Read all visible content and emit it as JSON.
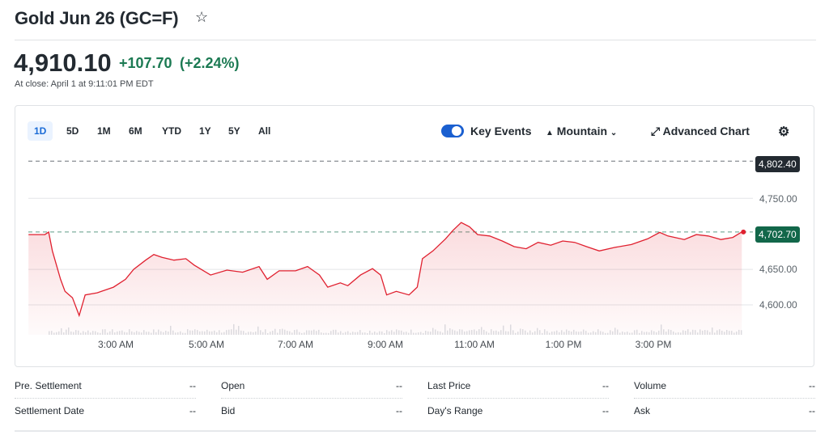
{
  "header": {
    "title": "Gold Jun 26 (GC=F)",
    "watchlist_icon": "star-icon"
  },
  "quote": {
    "price": "4,910.10",
    "change": "+107.70",
    "change_percent": "(+2.24%)",
    "close_note": "At close: April 1 at 9:11:01 PM EDT",
    "up_color": "#1c7a53"
  },
  "toolbar": {
    "ranges": [
      "1D",
      "5D",
      "1M",
      "6M",
      "YTD",
      "1Y",
      "5Y",
      "All"
    ],
    "active_range": "1D",
    "key_events_label": "Key Events",
    "key_events_on": true,
    "chart_type_label": "Mountain",
    "advanced_chart_label": "Advanced Chart",
    "settings_icon": "gear-icon"
  },
  "chart_data": {
    "type": "area",
    "line_color": "#e0202f",
    "x_ticks": [
      "3:00 AM",
      "5:00 AM",
      "7:00 AM",
      "9:00 AM",
      "11:00 AM",
      "1:00 PM",
      "3:00 PM"
    ],
    "y_ticks": [
      "4,750.00",
      "4,650.00",
      "4,600.00"
    ],
    "reference_lines": [
      {
        "label": "4,802.40",
        "value": 4802.4,
        "color": "#232a31"
      },
      {
        "label": "4,702.70",
        "value": 4702.7,
        "color": "#12674a"
      }
    ],
    "points": [
      [
        "1:03",
        4699
      ],
      [
        "1:25",
        4699
      ],
      [
        "1:30",
        4702.5
      ],
      [
        "1:35",
        4676
      ],
      [
        "1:46",
        4636
      ],
      [
        "1:52",
        4619
      ],
      [
        "2:02",
        4610
      ],
      [
        "2:11",
        4585
      ],
      [
        "2:19",
        4614
      ],
      [
        "2:35",
        4617
      ],
      [
        "2:57",
        4625
      ],
      [
        "3:13",
        4636
      ],
      [
        "3:24",
        4650
      ],
      [
        "3:40",
        4663
      ],
      [
        "3:51",
        4671
      ],
      [
        "4:02",
        4667
      ],
      [
        "4:18",
        4663
      ],
      [
        "4:34",
        4665
      ],
      [
        "4:45",
        4656
      ],
      [
        "5:07",
        4642
      ],
      [
        "5:29",
        4649
      ],
      [
        "5:50",
        4646
      ],
      [
        "6:12",
        4654
      ],
      [
        "6:23",
        4636
      ],
      [
        "6:39",
        4648
      ],
      [
        "7:01",
        4648
      ],
      [
        "7:17",
        4654
      ],
      [
        "7:33",
        4642
      ],
      [
        "7:44",
        4625
      ],
      [
        "8:01",
        4631
      ],
      [
        "8:11",
        4627
      ],
      [
        "8:28",
        4642
      ],
      [
        "8:44",
        4651
      ],
      [
        "8:55",
        4642
      ],
      [
        "9:03",
        4614
      ],
      [
        "9:16",
        4619
      ],
      [
        "9:33",
        4614
      ],
      [
        "9:44",
        4625
      ],
      [
        "9:51",
        4665
      ],
      [
        "10:05",
        4676
      ],
      [
        "10:22",
        4693
      ],
      [
        "10:32",
        4705
      ],
      [
        "10:43",
        4716
      ],
      [
        "10:54",
        4710
      ],
      [
        "11:05",
        4699
      ],
      [
        "11:21",
        4697
      ],
      [
        "11:38",
        4690
      ],
      [
        "11:54",
        4682
      ],
      [
        "12:10",
        4679
      ],
      [
        "12:26",
        4688
      ],
      [
        "12:43",
        4684
      ],
      [
        "12:59",
        4690
      ],
      [
        "13:15",
        4688
      ],
      [
        "13:31",
        4682
      ],
      [
        "13:48",
        4676
      ],
      [
        "14:09",
        4681
      ],
      [
        "14:31",
        4685
      ],
      [
        "14:53",
        4693
      ],
      [
        "15:09",
        4702
      ],
      [
        "15:20",
        4697
      ],
      [
        "15:42",
        4692
      ],
      [
        "15:58",
        4699
      ],
      [
        "16:14",
        4697
      ],
      [
        "16:31",
        4692
      ],
      [
        "16:47",
        4695
      ],
      [
        "16:59",
        4702.7
      ]
    ]
  },
  "stats": [
    {
      "label": "Pre. Settlement",
      "value": "--"
    },
    {
      "label": "Open",
      "value": "--"
    },
    {
      "label": "Last Price",
      "value": "--"
    },
    {
      "label": "Volume",
      "value": "--"
    },
    {
      "label": "Settlement Date",
      "value": "--"
    },
    {
      "label": "Bid",
      "value": "--"
    },
    {
      "label": "Day's Range",
      "value": "--"
    },
    {
      "label": "Ask",
      "value": "--"
    }
  ]
}
